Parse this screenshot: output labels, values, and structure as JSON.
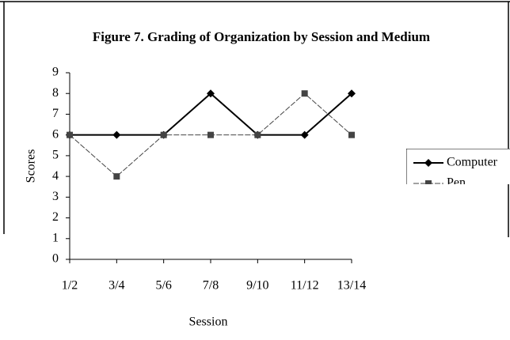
{
  "chart_data": {
    "type": "line",
    "title": "Figure 7. Grading of Organization by Session and Medium",
    "x_label": "Session",
    "y_label": "Scores",
    "categories": [
      "1/2",
      "3/4",
      "5/6",
      "7/8",
      "9/10",
      "11/12",
      "13/14"
    ],
    "series": [
      {
        "name": "Computer",
        "color": "#000000",
        "values": [
          6,
          6,
          6,
          8,
          6,
          6,
          8
        ]
      },
      {
        "name": "Pen",
        "color": "#444444",
        "values": [
          6,
          4,
          6,
          6,
          6,
          8,
          6
        ]
      }
    ],
    "ylim": [
      0,
      9
    ],
    "yticks": [
      0,
      1,
      2,
      3,
      4,
      5,
      6,
      7,
      8,
      9
    ],
    "grid": false,
    "legend": "right"
  }
}
